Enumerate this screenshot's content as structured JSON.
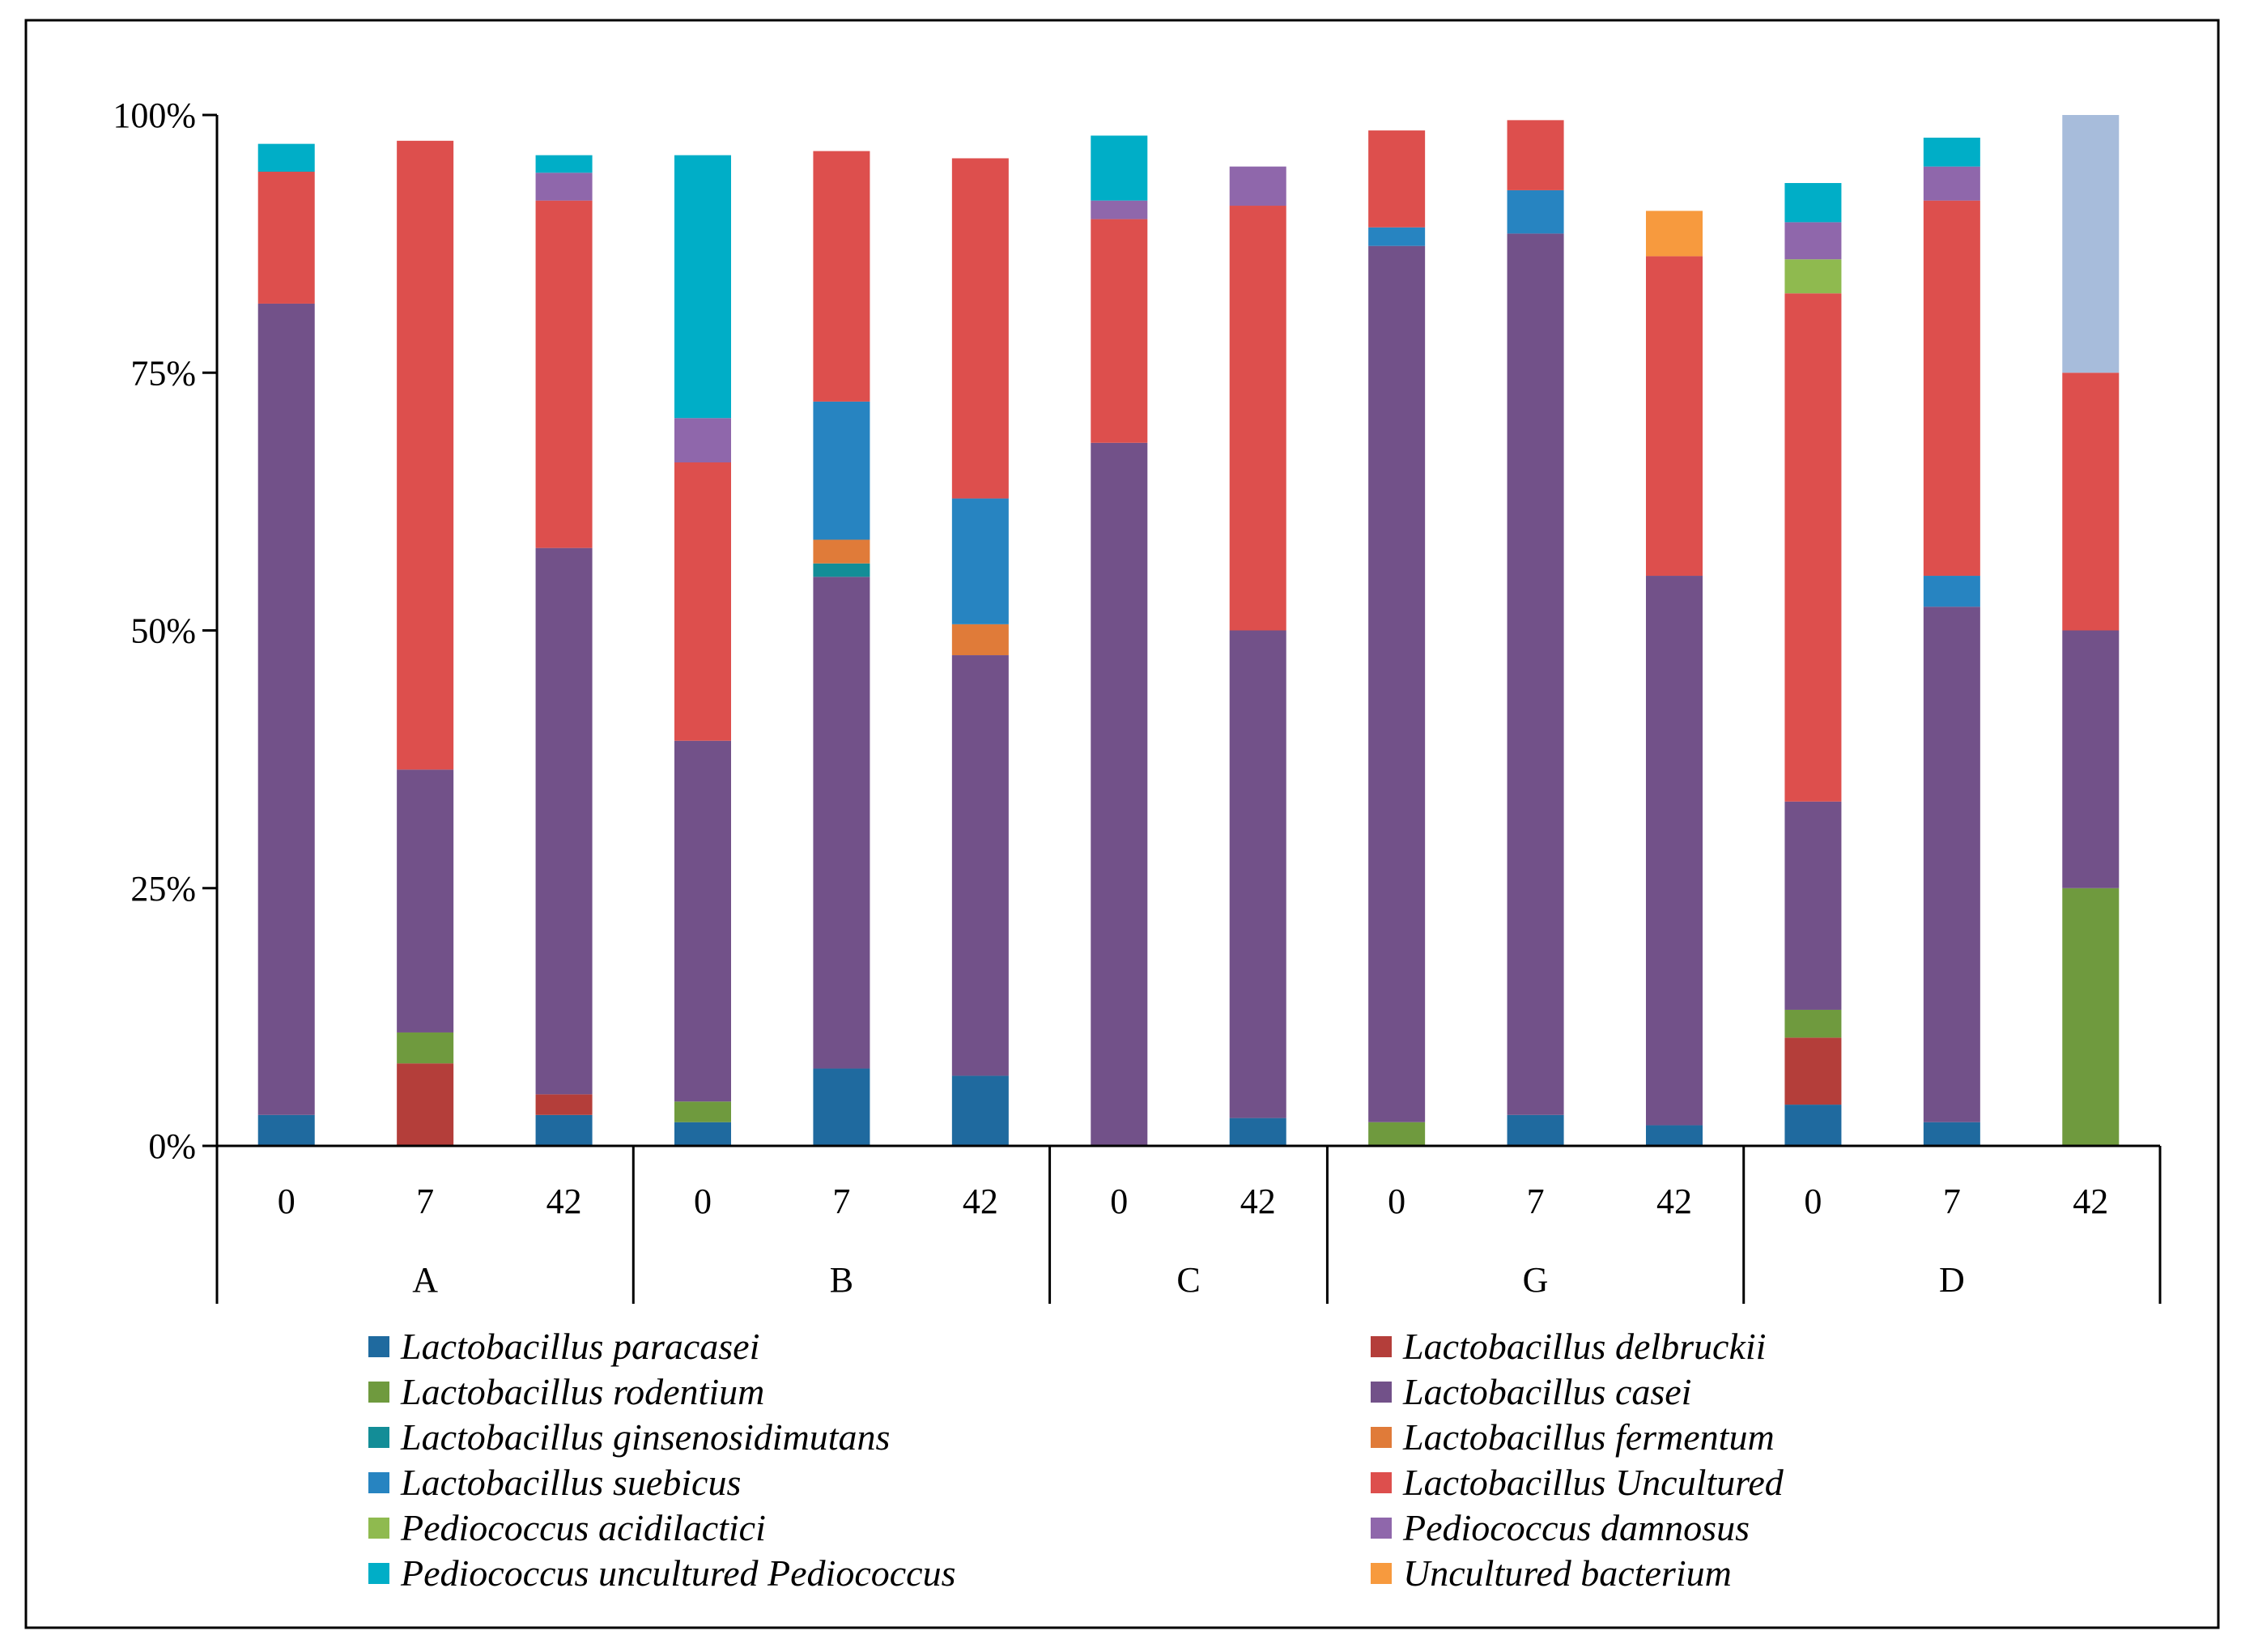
{
  "chart_data": {
    "type": "bar",
    "stacked": true,
    "normalized": true,
    "title": "",
    "xlabel": "",
    "ylabel": "",
    "ylim": [
      0,
      100
    ],
    "y_ticks": [
      "0%",
      "25%",
      "50%",
      "75%",
      "100%"
    ],
    "grid": false,
    "legend_position": "bottom",
    "groups": [
      {
        "name": "A",
        "categories": [
          "0",
          "7",
          "42"
        ]
      },
      {
        "name": "B",
        "categories": [
          "0",
          "7",
          "42"
        ]
      },
      {
        "name": "C",
        "categories": [
          "0",
          "42"
        ]
      },
      {
        "name": "G",
        "categories": [
          "0",
          "7",
          "42"
        ]
      },
      {
        "name": "D",
        "categories": [
          "0",
          "7",
          "42"
        ]
      }
    ],
    "categories": [
      "A 0",
      "A 7",
      "A 42",
      "B 0",
      "B 7",
      "B 42",
      "C 0",
      "C 42",
      "G 0",
      "G 7",
      "G 42",
      "D 0",
      "D 7",
      "D 42"
    ],
    "series": [
      {
        "name": "Lactobacillus paracasei",
        "color": "#1f6a9f",
        "values": [
          3,
          0,
          3,
          2.3,
          7.5,
          6.8,
          0,
          2.7,
          0,
          3,
          2,
          4,
          2.3,
          0
        ]
      },
      {
        "name": "Lactobacillus delbruckii",
        "color": "#b43e3a",
        "values": [
          0,
          8,
          2,
          0,
          0,
          0,
          0,
          0,
          0,
          0,
          0,
          6.5,
          0,
          0
        ]
      },
      {
        "name": "Lactobacillus rodentium",
        "color": "#6f9a3e",
        "values": [
          0,
          3,
          0,
          2,
          0,
          0,
          0,
          0,
          2.3,
          0,
          0,
          2.7,
          0,
          25
        ]
      },
      {
        "name": "Lactobacillus casei",
        "color": "#725189",
        "values": [
          78.7,
          25.5,
          53,
          35,
          47.7,
          40.8,
          68.2,
          47.3,
          85,
          85.5,
          53.3,
          20.2,
          50,
          25
        ]
      },
      {
        "name": "Lactobacillus ginsenosidimutans",
        "color": "#138d97",
        "values": [
          0,
          0,
          0,
          0,
          1.3,
          0,
          0,
          0,
          0,
          0,
          0,
          0,
          0,
          0
        ]
      },
      {
        "name": "Lactobacillus fermentum",
        "color": "#e07b39",
        "values": [
          0,
          0,
          0,
          0,
          2.3,
          3,
          0,
          0,
          0,
          0,
          0,
          0,
          0,
          0
        ]
      },
      {
        "name": "Lactobacillus suebicus",
        "color": "#2784c1",
        "values": [
          0,
          0,
          0,
          0,
          13.4,
          12.2,
          0,
          0,
          1.8,
          4.2,
          0,
          0,
          3,
          0
        ]
      },
      {
        "name": "Lactobacillus Uncultured",
        "color": "#dd4f4d",
        "values": [
          12.8,
          61,
          33.7,
          27,
          24.3,
          33,
          21.7,
          41.2,
          9.4,
          6.8,
          31,
          49.3,
          36.4,
          25
        ]
      },
      {
        "name": "Pediococcus acidilactici",
        "color": "#8fba4f",
        "values": [
          0,
          0,
          0,
          0,
          0,
          0,
          0,
          0,
          0,
          0,
          0,
          3.3,
          0,
          0
        ]
      },
      {
        "name": "Pediococcus damnosus",
        "color": "#8f67ab",
        "values": [
          0,
          0,
          2.7,
          4.3,
          0,
          0,
          1.8,
          3.8,
          0,
          0,
          0,
          3.6,
          3.3,
          0
        ]
      },
      {
        "name": "Pediococcus uncultured Pediococcus",
        "color": "#00aec7",
        "values": [
          2.7,
          0,
          1.7,
          25.5,
          0,
          0,
          6.3,
          0,
          0,
          0,
          0,
          3.8,
          2.8,
          0
        ]
      },
      {
        "name": "Uncultured bacterium",
        "color": "#f79a3e",
        "values": [
          0,
          0,
          0,
          0,
          0,
          0,
          0,
          0,
          0,
          0,
          4.4,
          0,
          0,
          0
        ]
      },
      {
        "name": "",
        "color": "#a7bcdb",
        "values": [
          0,
          0,
          0,
          0,
          0,
          0,
          0,
          0,
          0,
          0,
          0,
          0,
          0,
          25
        ]
      }
    ],
    "legend": [
      "Lactobacillus paracasei",
      "Lactobacillus delbruckii",
      "Lactobacillus rodentium",
      "Lactobacillus casei",
      "Lactobacillus ginsenosidimutans",
      "Lactobacillus fermentum",
      "Lactobacillus suebicus",
      "Lactobacillus Uncultured",
      "Pediococcus acidilactici",
      "Pediococcus damnosus",
      "Pediococcus uncultured Pediococcus",
      "Uncultured bacterium"
    ]
  }
}
